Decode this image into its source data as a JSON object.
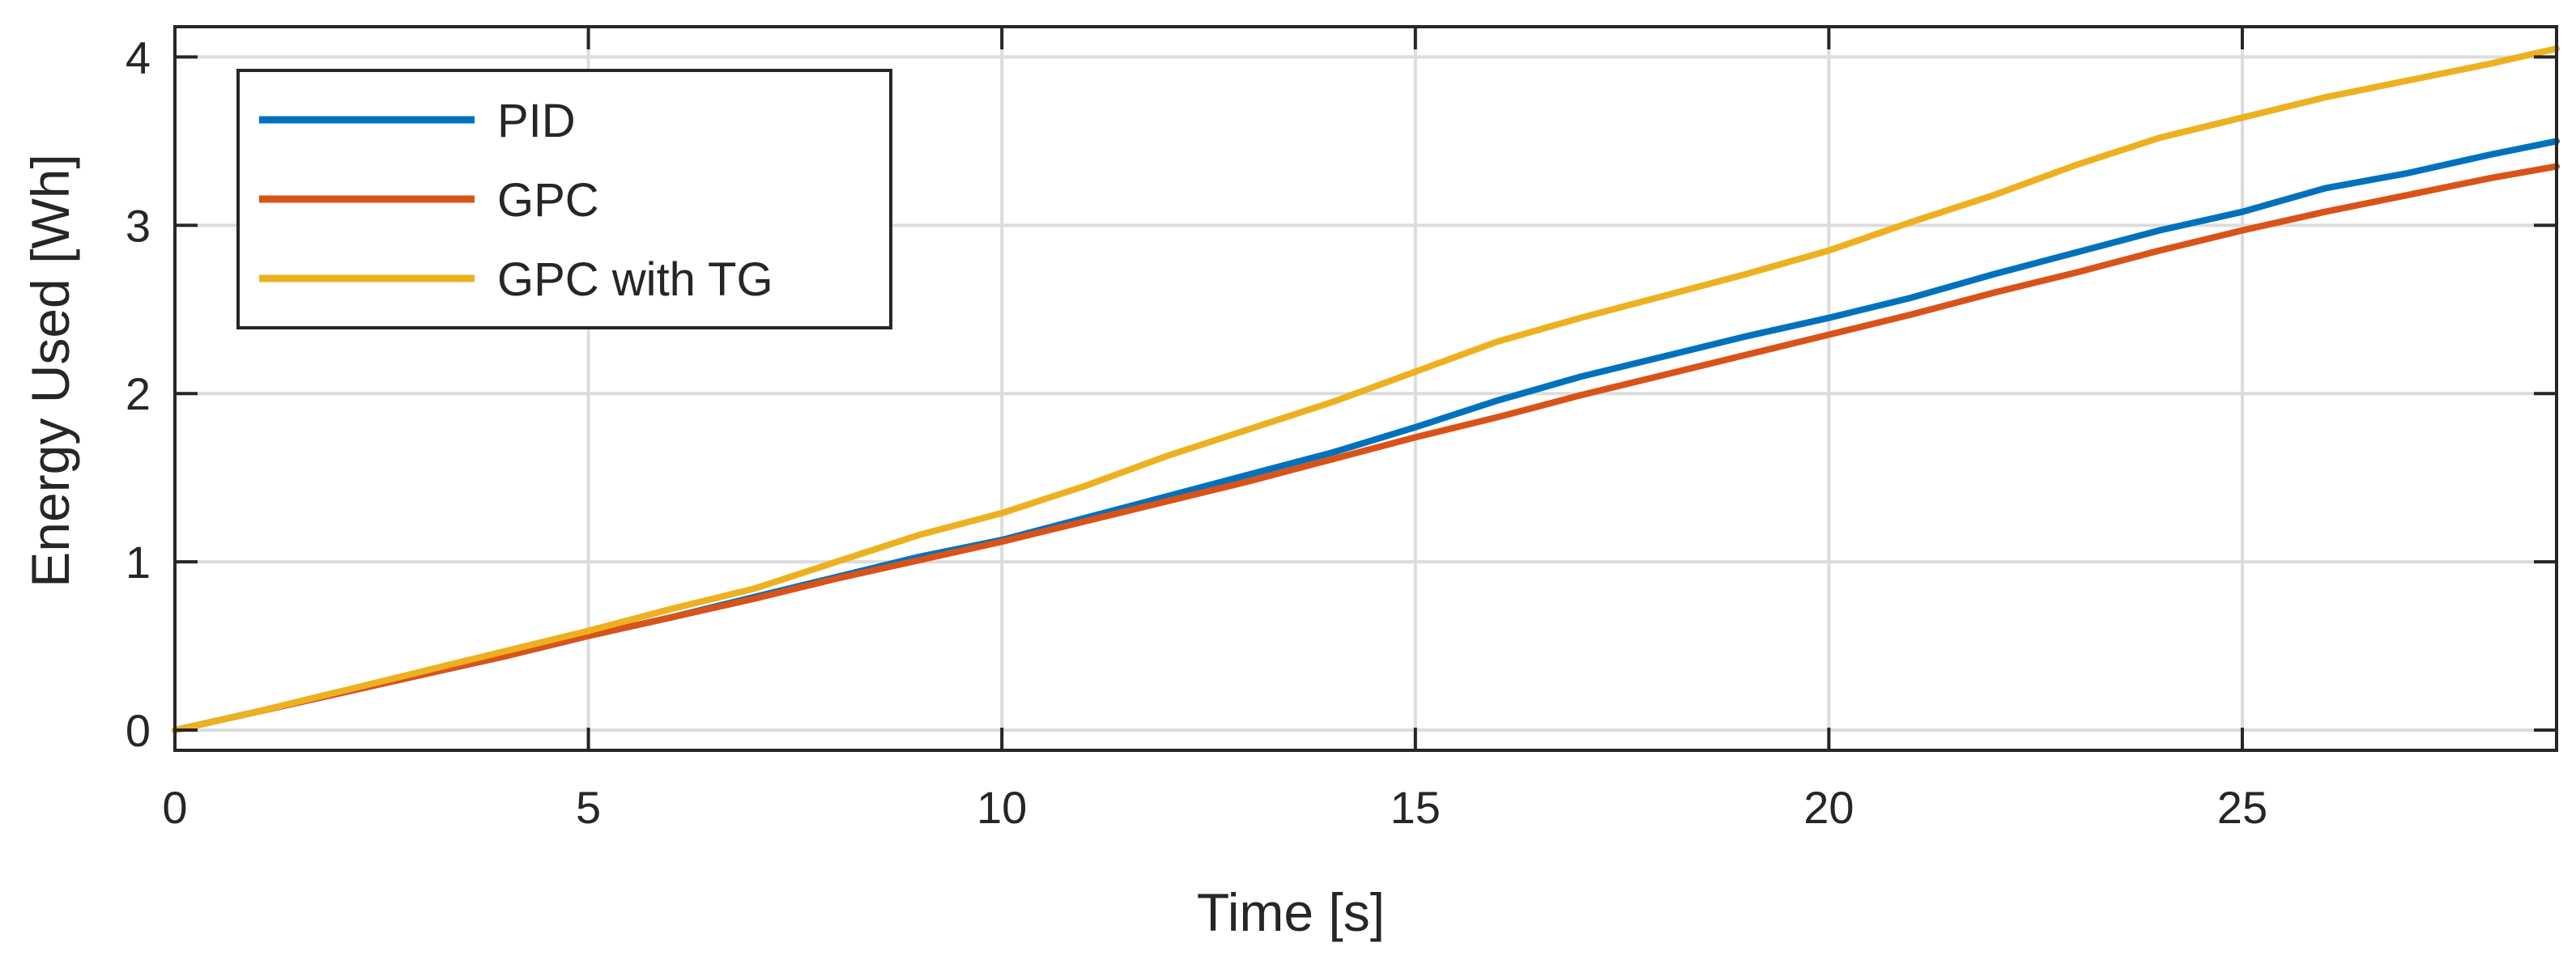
{
  "chart_data": {
    "type": "line",
    "title": "",
    "xlabel": "Time [s]",
    "ylabel": "Energy Used [Wh]",
    "xlim": [
      0,
      28.8
    ],
    "ylim": [
      -0.12,
      4.18
    ],
    "xticks": [
      0,
      5,
      10,
      15,
      20,
      25
    ],
    "yticks": [
      0,
      1,
      2,
      3,
      4
    ],
    "xtick_labels": [
      "0",
      "5",
      "10",
      "15",
      "20",
      "25"
    ],
    "ytick_labels": [
      "0",
      "1",
      "2",
      "3",
      "4"
    ],
    "grid": true,
    "legend_position": "top-left",
    "x": [
      0,
      1,
      2,
      3,
      4,
      5,
      6,
      7,
      8,
      9,
      10,
      11,
      12,
      13,
      14,
      15,
      16,
      17,
      18,
      19,
      20,
      21,
      22,
      23,
      24,
      25,
      26,
      27,
      28,
      28.8
    ],
    "series": [
      {
        "name": "PID",
        "color": "#0072BD",
        "values": [
          0,
          0.11,
          0.22,
          0.33,
          0.44,
          0.56,
          0.67,
          0.79,
          0.91,
          1.03,
          1.13,
          1.26,
          1.39,
          1.52,
          1.65,
          1.8,
          1.96,
          2.1,
          2.22,
          2.34,
          2.45,
          2.57,
          2.71,
          2.84,
          2.97,
          3.08,
          3.22,
          3.31,
          3.42,
          3.5
        ]
      },
      {
        "name": "GPC",
        "color": "#D95319",
        "values": [
          0,
          0.11,
          0.22,
          0.33,
          0.44,
          0.56,
          0.67,
          0.78,
          0.9,
          1.01,
          1.12,
          1.24,
          1.36,
          1.48,
          1.61,
          1.74,
          1.86,
          1.99,
          2.11,
          2.23,
          2.35,
          2.47,
          2.6,
          2.72,
          2.85,
          2.97,
          3.08,
          3.18,
          3.28,
          3.35
        ]
      },
      {
        "name": "GPC with TG",
        "color": "#EDB120",
        "values": [
          0,
          0.11,
          0.23,
          0.35,
          0.47,
          0.59,
          0.72,
          0.84,
          1.0,
          1.16,
          1.29,
          1.45,
          1.63,
          1.79,
          1.95,
          2.13,
          2.31,
          2.45,
          2.58,
          2.71,
          2.85,
          3.02,
          3.18,
          3.36,
          3.52,
          3.64,
          3.76,
          3.86,
          3.96,
          4.05
        ]
      }
    ]
  }
}
